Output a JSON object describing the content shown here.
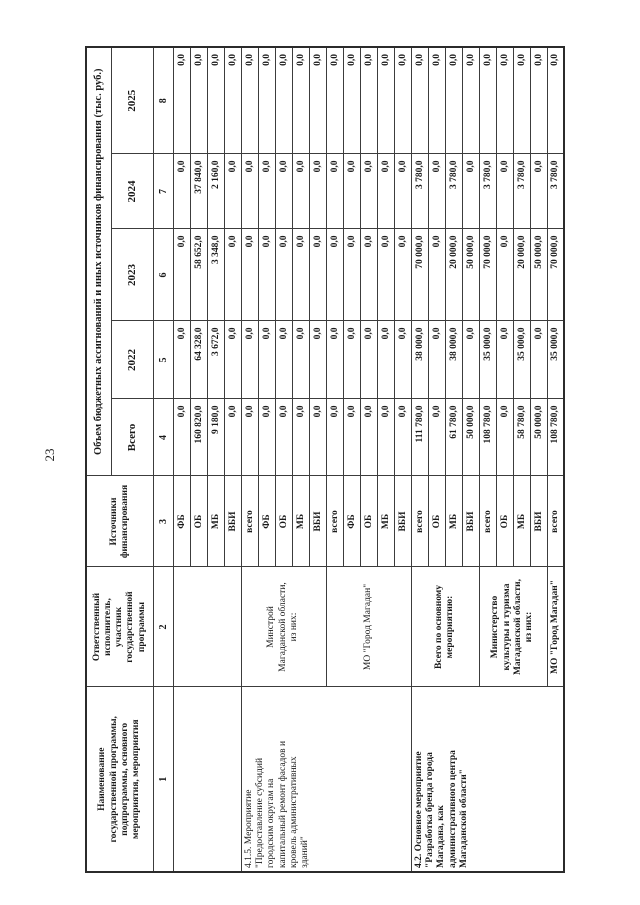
{
  "page": {
    "number": "23"
  },
  "table": {
    "header": {
      "col1": "Наименование\nгосударственной программы,\nподпрограммы, основного\nмероприятия, мероприятия",
      "col2": "Ответственный\nисполнитель,\nучастник\nгосударственной\nпрограммы",
      "col3": "Источники\nфинансирования",
      "span": "Объем бюджетных ассигнований и иных источников финансирования (тыс. руб.)",
      "years": [
        "Всего",
        "2022",
        "2023",
        "2024",
        "2025"
      ],
      "numbers": [
        "1",
        "2",
        "3",
        "4",
        "5",
        "6",
        "7",
        "8"
      ]
    },
    "groups": [
      {
        "name": "",
        "bold": false,
        "execs": [
          {
            "label": "",
            "rows": [
              {
                "source": "ФБ",
                "values": [
                  "0,0",
                  "0,0",
                  "0,0",
                  "0,0",
                  "0,0"
                ]
              },
              {
                "source": "ОБ",
                "values": [
                  "160 820,0",
                  "64 328,0",
                  "58 652,0",
                  "37 840,0",
                  "0,0"
                ]
              },
              {
                "source": "МБ",
                "values": [
                  "9 180,0",
                  "3 672,0",
                  "3 348,0",
                  "2 160,0",
                  "0,0"
                ]
              },
              {
                "source": "ВБИ",
                "values": [
                  "0,0",
                  "0,0",
                  "0,0",
                  "0,0",
                  "0,0"
                ]
              }
            ]
          }
        ]
      },
      {
        "name": "4.1.5. Мероприятие\n\"Предоставление субсидий\nгородским округам на\nкапитальный ремонт фасадов и\nкровель административных\nзданий\"",
        "bold": false,
        "execs": [
          {
            "label": "Минстрой\nМагаданской области,\nиз них:",
            "rows": [
              {
                "source": "всего",
                "values": [
                  "0,0",
                  "0,0",
                  "0,0",
                  "0,0",
                  "0,0"
                ]
              },
              {
                "source": "ФБ",
                "values": [
                  "0,0",
                  "0,0",
                  "0,0",
                  "0,0",
                  "0,0"
                ]
              },
              {
                "source": "ОБ",
                "values": [
                  "0,0",
                  "0,0",
                  "0,0",
                  "0,0",
                  "0,0"
                ]
              },
              {
                "source": "МБ",
                "values": [
                  "0,0",
                  "0,0",
                  "0,0",
                  "0,0",
                  "0,0"
                ]
              },
              {
                "source": "ВБИ",
                "values": [
                  "0,0",
                  "0,0",
                  "0,0",
                  "0,0",
                  "0,0"
                ]
              }
            ]
          },
          {
            "label": "МО \"Город Магадан\"",
            "rows": [
              {
                "source": "всего",
                "values": [
                  "0,0",
                  "0,0",
                  "0,0",
                  "0,0",
                  "0,0"
                ]
              },
              {
                "source": "ФБ",
                "values": [
                  "0,0",
                  "0,0",
                  "0,0",
                  "0,0",
                  "0,0"
                ]
              },
              {
                "source": "ОБ",
                "values": [
                  "0,0",
                  "0,0",
                  "0,0",
                  "0,0",
                  "0,0"
                ]
              },
              {
                "source": "МБ",
                "values": [
                  "0,0",
                  "0,0",
                  "0,0",
                  "0,0",
                  "0,0"
                ]
              },
              {
                "source": "ВБИ",
                "values": [
                  "0,0",
                  "0,0",
                  "0,0",
                  "0,0",
                  "0,0"
                ]
              }
            ]
          }
        ]
      },
      {
        "name": "4.2. Основное мероприятие\n\"Разработка бренда города\nМагадана, как\nадминистративного центра\nМагаданской области\"",
        "bold": true,
        "execs": [
          {
            "label": "Всего по основному\nмероприятию:",
            "rows": [
              {
                "source": "всего",
                "values": [
                  "111 780,0",
                  "38 000,0",
                  "70 000,0",
                  "3 780,0",
                  "0,0"
                ]
              },
              {
                "source": "ОБ",
                "values": [
                  "0,0",
                  "0,0",
                  "0,0",
                  "0,0",
                  "0,0"
                ]
              },
              {
                "source": "МБ",
                "values": [
                  "61 780,0",
                  "38 000,0",
                  "20 000,0",
                  "3 780,0",
                  "0,0"
                ]
              },
              {
                "source": "ВБИ",
                "values": [
                  "50 000,0",
                  "0,0",
                  "50 000,0",
                  "0,0",
                  "0,0"
                ]
              }
            ]
          },
          {
            "label": "Министерство\nкультуры и туризма\nМагаданской области,\nиз них:",
            "rows": [
              {
                "source": "всего",
                "values": [
                  "108 780,0",
                  "35 000,0",
                  "70 000,0",
                  "3 780,0",
                  "0,0"
                ]
              },
              {
                "source": "ОБ",
                "values": [
                  "0,0",
                  "0,0",
                  "0,0",
                  "0,0",
                  "0,0"
                ]
              },
              {
                "source": "МБ",
                "values": [
                  "58 780,0",
                  "35 000,0",
                  "20 000,0",
                  "3 780,0",
                  "0,0"
                ]
              },
              {
                "source": "ВБИ",
                "values": [
                  "50 000,0",
                  "0,0",
                  "50 000,0",
                  "0,0",
                  "0,0"
                ]
              }
            ]
          },
          {
            "label": "МО \"Город Магадан\"",
            "rows": [
              {
                "source": "всего",
                "values": [
                  "108 780,0",
                  "35 000,0",
                  "70 000,0",
                  "3 780,0",
                  "0,0"
                ]
              }
            ]
          }
        ]
      }
    ]
  }
}
